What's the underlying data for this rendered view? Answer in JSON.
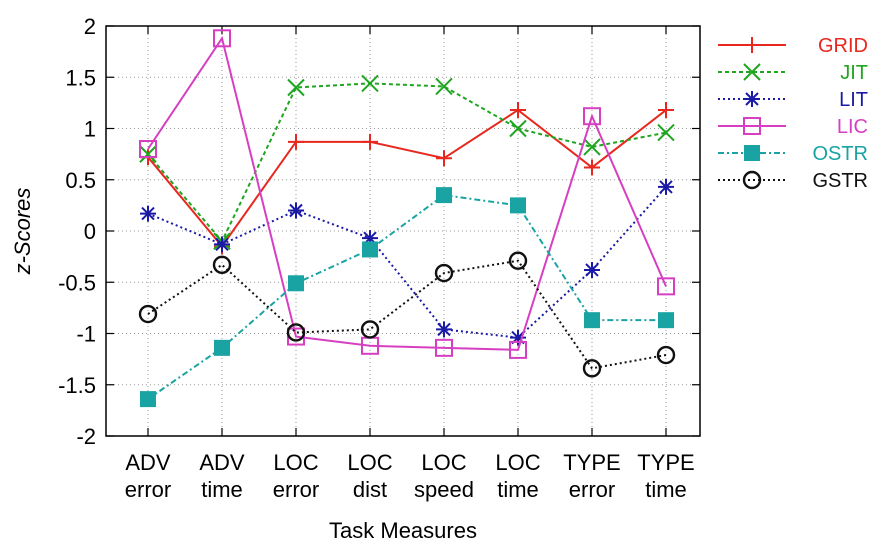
{
  "chart_data": {
    "type": "line",
    "title": "",
    "xlabel": "Task Measures",
    "ylabel": "z-Scores",
    "ylim": [
      -2,
      2
    ],
    "yticks": [
      -2,
      -1.5,
      -1,
      -0.5,
      0,
      0.5,
      1,
      1.5,
      2
    ],
    "ytick_labels": [
      "-2",
      "-1.5",
      "-1",
      "-0.5",
      "0",
      "0.5",
      "1",
      "1.5",
      "2"
    ],
    "grid": true,
    "legend_position": "right",
    "categories": [
      [
        "ADV",
        "error"
      ],
      [
        "ADV",
        "time"
      ],
      [
        "LOC",
        "error"
      ],
      [
        "LOC",
        "dist"
      ],
      [
        "LOC",
        "speed"
      ],
      [
        "LOC",
        "time"
      ],
      [
        "TYPE",
        "error"
      ],
      [
        "TYPE",
        "time"
      ]
    ],
    "series": [
      {
        "name": "GRID",
        "color": "#e8281e",
        "marker": "plus",
        "dash": "",
        "values": [
          0.72,
          -0.15,
          0.87,
          0.87,
          0.71,
          1.18,
          0.62,
          1.18
        ]
      },
      {
        "name": "JIT",
        "color": "#1fa51f",
        "marker": "cross",
        "dash": "4,3",
        "values": [
          0.75,
          -0.1,
          1.4,
          1.44,
          1.41,
          1.0,
          0.82,
          0.96
        ]
      },
      {
        "name": "LIT",
        "color": "#1a1aa6",
        "marker": "star",
        "dash": "2,3",
        "values": [
          0.17,
          -0.13,
          0.2,
          -0.07,
          -0.96,
          -1.04,
          -0.38,
          0.43
        ]
      },
      {
        "name": "LIC",
        "color": "#d63fc2",
        "marker": "square-open",
        "dash": "",
        "values": [
          0.8,
          1.88,
          -1.03,
          -1.12,
          -1.14,
          -1.16,
          1.12,
          -0.54
        ]
      },
      {
        "name": "OSTR",
        "color": "#1aa3a3",
        "marker": "square-filled",
        "dash": "6,3,2,3",
        "values": [
          -1.64,
          -1.14,
          -0.51,
          -0.18,
          0.35,
          0.25,
          -0.87,
          -0.87
        ]
      },
      {
        "name": "GSTR",
        "color": "#111111",
        "marker": "circle-open",
        "dash": "2,3",
        "values": [
          -0.81,
          -0.33,
          -0.99,
          -0.96,
          -0.41,
          -0.29,
          -1.34,
          -1.21
        ]
      }
    ]
  }
}
